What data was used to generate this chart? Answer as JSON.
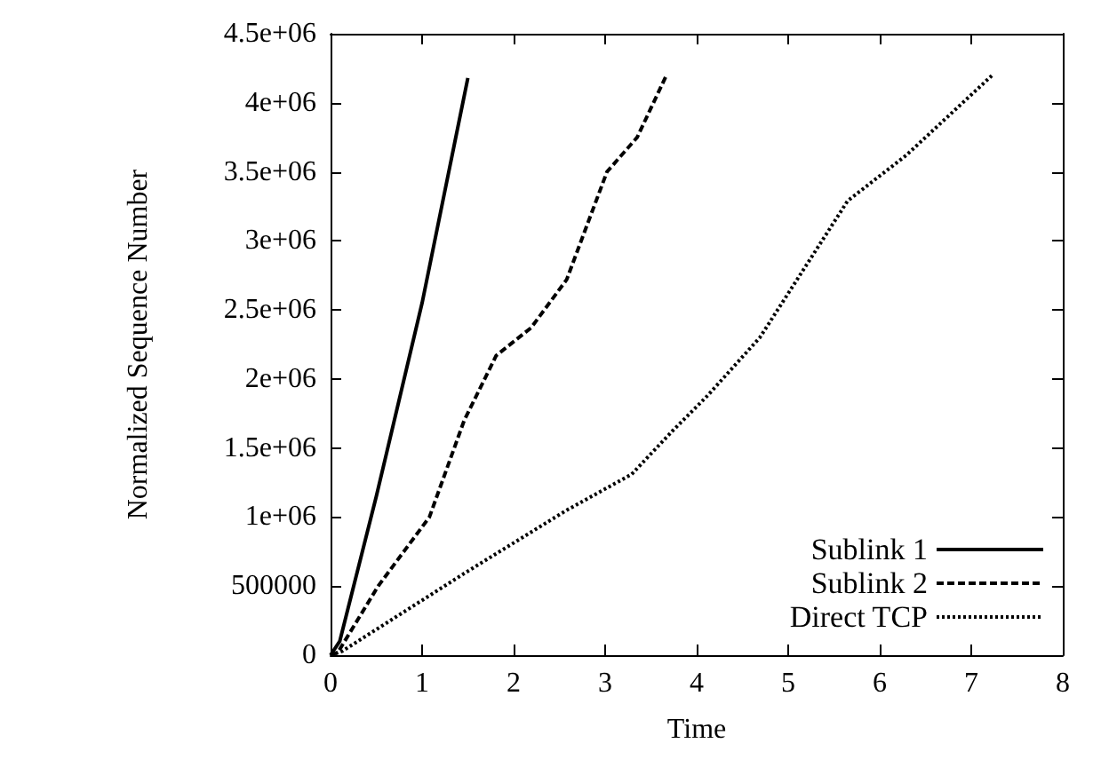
{
  "chart_data": {
    "type": "line",
    "xlabel": "Time",
    "ylabel": "Normalized Sequence Number",
    "xlim": [
      0,
      8
    ],
    "xticks": [
      0,
      1,
      2,
      3,
      4,
      5,
      6,
      7,
      8
    ],
    "ylim": [
      0,
      4500000
    ],
    "yticks": [
      0,
      500000,
      {
        "value": 1000000,
        "label": "1e+06"
      },
      {
        "value": 1500000,
        "label": "1.5e+06"
      },
      {
        "value": 2000000,
        "label": "2e+06"
      },
      {
        "value": 2500000,
        "label": "2.5e+06"
      },
      {
        "value": 3000000,
        "label": "3e+06"
      },
      {
        "value": 3500000,
        "label": "3.5e+06"
      },
      {
        "value": 4000000,
        "label": "4e+06"
      },
      {
        "value": 4500000,
        "label": "4.5e+06"
      }
    ],
    "grid": false,
    "legend": "bottom right",
    "marker": "none",
    "series": [
      {
        "name": "Sublink 1",
        "color": "#000000",
        "line_style": "solid",
        "x": [
          0,
          0.1,
          0.5,
          1,
          1.5
        ],
        "values": [
          0,
          100000,
          1150000,
          2550000,
          4180000
        ]
      },
      {
        "name": "Sublink 2",
        "color": "#000000",
        "line_style": "dashed",
        "x": [
          0,
          0.08,
          0.52,
          1.08,
          1.46,
          1.81,
          2.19,
          2.58,
          3.02,
          3.35,
          3.67
        ],
        "values": [
          0,
          20000,
          500000,
          1000000,
          1700000,
          2170000,
          2370000,
          2720000,
          3500000,
          3750000,
          4200000
        ]
      },
      {
        "name": "Direct TCP",
        "color": "#000000",
        "line_style": "dotted",
        "x": [
          0,
          0.13,
          1.48,
          2.58,
          3.29,
          3.73,
          4.12,
          4.69,
          5.65,
          6.29,
          7.23
        ],
        "values": [
          0,
          30000,
          600000,
          1050000,
          1310000,
          1620000,
          1880000,
          2300000,
          3290000,
          3620000,
          4200000
        ]
      }
    ]
  }
}
